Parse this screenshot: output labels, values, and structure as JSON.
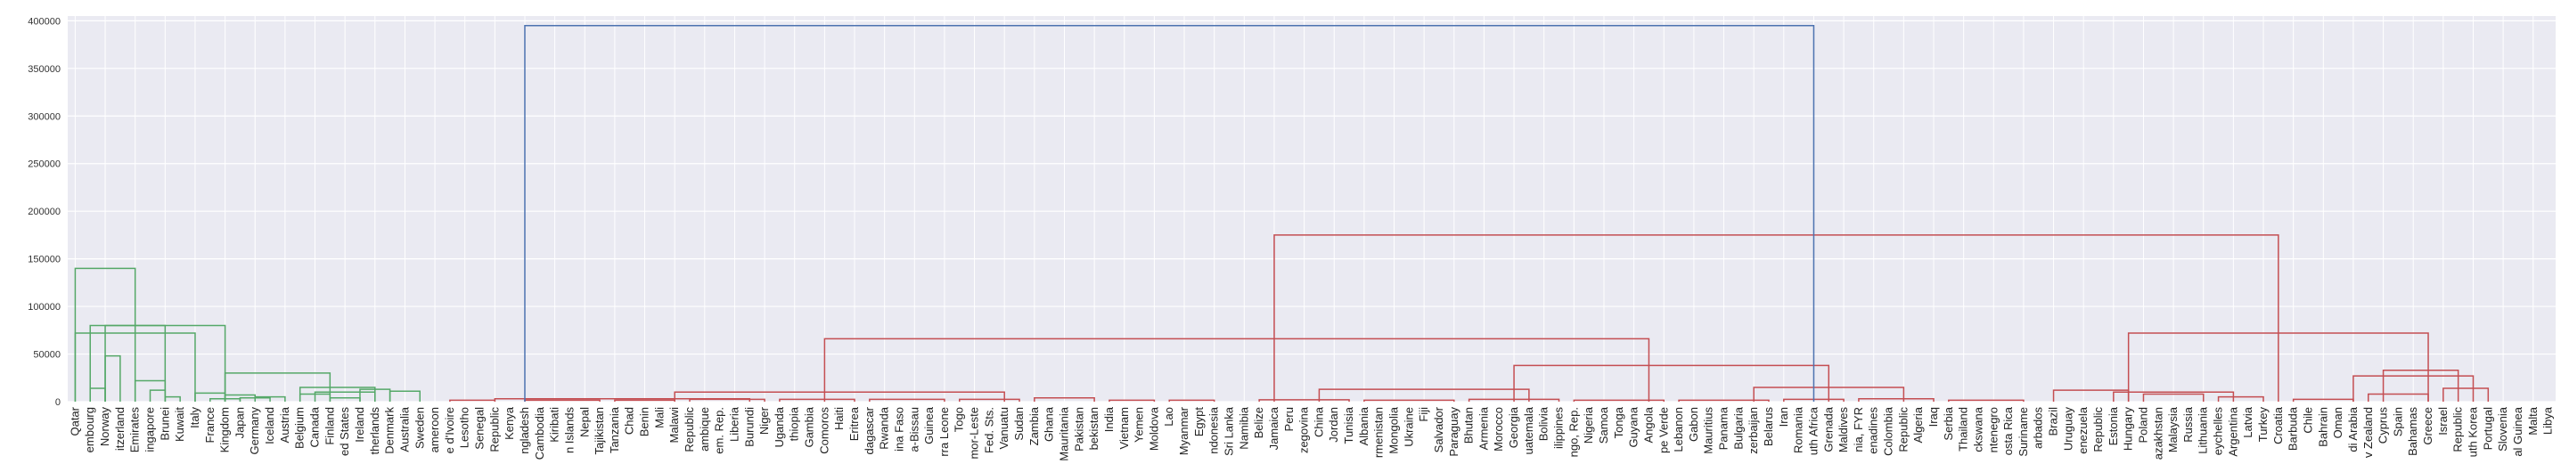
{
  "chart_data": {
    "type": "dendrogram",
    "ylim": [
      0,
      405000
    ],
    "yticks": [
      0,
      50000,
      100000,
      150000,
      200000,
      250000,
      300000,
      350000,
      400000
    ],
    "ytick_labels": [
      "0",
      "50000",
      "100000",
      "150000",
      "200000",
      "250000",
      "300000",
      "350000",
      "400000"
    ],
    "grid": true,
    "colors": {
      "background": "#eaeaf2",
      "grid": "#ffffff",
      "cluster_green": "#55a868",
      "cluster_red": "#c44e52",
      "root_blue": "#4c72b0"
    },
    "leaves": [
      "Qatar",
      "embourg",
      "Norway",
      "itzerland",
      "Emirates",
      "ingapore",
      "Brunei",
      "Kuwait",
      "Italy",
      "France",
      "Kingdom",
      "Japan",
      "Germany",
      "Iceland",
      "Austria",
      "Belgium",
      "Canada",
      "Finland",
      "ed States",
      "Ireland",
      "therlands",
      "Denmark",
      "Australia",
      "Sweden",
      "ameroon",
      "e d'Ivoire",
      "Lesotho",
      "Senegal",
      "Republic",
      "Kenya",
      "ngladesh",
      "Cambodia",
      "Kiribati",
      "n Islands",
      "Nepal",
      "Tajikistan",
      "Tanzania",
      "Chad",
      "Benin",
      "Mali",
      "Malawi",
      "Republic",
      "ambique",
      "em. Rep.",
      "Liberia",
      "Burundi",
      "Niger",
      "Uganda",
      "thiopia",
      "Gambia",
      "Comoros",
      "Haiti",
      "Eritrea",
      "dagascar",
      "Rwanda",
      "ina Faso",
      "a-Bissau",
      "Guinea",
      "rra Leone",
      "Togo",
      "mor-Leste",
      "Fed. Sts.",
      "Vanuatu",
      "Sudan",
      "Zambia",
      "Ghana",
      "Mauritania",
      "Pakistan",
      "bekistan",
      "India",
      "Vietnam",
      "Yemen",
      "Moldova",
      "Lao",
      "Myanmar",
      "Egypt",
      "ndonesia",
      "Sri Lanka",
      "Namibia",
      "Belize",
      "Jamaica",
      "Peru",
      "zegovina",
      "China",
      "Jordan",
      "Tunisia",
      "Albania",
      "rmenistan",
      "Mongolia",
      "Ukraine",
      "Fiji",
      "Salvador",
      "Paraguay",
      "Bhutan",
      "Armenia",
      "Morocco",
      "Georgia",
      "uatemala",
      "Bolivia",
      "ilippines",
      "ngo, Rep.",
      "Nigeria",
      "Samoa",
      "Tonga",
      "Guyana",
      "Angola",
      "pe Verde",
      "Lebanon",
      "Gabon",
      "Mauritius",
      "Panama",
      "Bulgaria",
      "zerbaijan",
      "Belarus",
      "Iran",
      "Romania",
      "uth Africa",
      "Grenada",
      "Maldives",
      "nia, FYR",
      "enadines",
      "Colombia",
      "Republic",
      "Algeria",
      "Iraq",
      "Serbia",
      "Thailand",
      "ckswana",
      "ntenegro",
      "osta Rica",
      "Suriname",
      "arbados",
      "Brazil",
      "Uruguay",
      "enezuela",
      "Republic",
      "Estonia",
      "Hungary",
      "Poland",
      "azakhstan",
      "Malaysia",
      "Russia",
      "Lithuania",
      "eychelles",
      "Argentina",
      "Latvia",
      "Turkey",
      "Croatia",
      "Barbuda",
      "Chile",
      "Bahrain",
      "Oman",
      "di Arabia",
      "v Zealand",
      "Cyprus",
      "Spain",
      "Bahamas",
      "Greece",
      "Israel",
      "Republic",
      "uth Korea",
      "Portugal",
      "Slovenia",
      "al Guinea",
      "Malta",
      "Libya"
    ],
    "links": [
      [
        0,
        8,
        72000,
        "g"
      ],
      [
        1,
        2,
        14000,
        "g"
      ],
      [
        3,
        2,
        48000,
        "g"
      ],
      [
        5,
        6,
        12000,
        "g"
      ],
      [
        4,
        6,
        22000,
        "g"
      ],
      [
        6,
        7,
        5000,
        "g"
      ],
      [
        2,
        6,
        80000,
        "g"
      ],
      [
        8,
        10,
        9000,
        "g"
      ],
      [
        9,
        11,
        3000,
        "g"
      ],
      [
        11,
        13,
        4000,
        "g"
      ],
      [
        12,
        14,
        5000,
        "g"
      ],
      [
        10,
        12,
        7000,
        "g"
      ],
      [
        15,
        17,
        8000,
        "g"
      ],
      [
        17,
        19,
        4000,
        "g"
      ],
      [
        19,
        21,
        13000,
        "g"
      ],
      [
        16,
        20,
        10000,
        "g"
      ],
      [
        21,
        23,
        11000,
        "g"
      ],
      [
        15,
        20,
        15000,
        "g"
      ],
      [
        10,
        17,
        30000,
        "g"
      ],
      [
        1,
        10,
        80000,
        "g"
      ],
      [
        0,
        4,
        140000,
        "g"
      ],
      [
        25,
        28,
        1500,
        "r"
      ],
      [
        30,
        35,
        1500,
        "r"
      ],
      [
        36,
        40,
        1500,
        "r"
      ],
      [
        41,
        46,
        2500,
        "r"
      ],
      [
        47,
        52,
        2500,
        "r"
      ],
      [
        28,
        45,
        3000,
        "r"
      ],
      [
        53,
        58,
        2500,
        "r"
      ],
      [
        59,
        63,
        2500,
        "r"
      ],
      [
        64,
        68,
        4000,
        "r"
      ],
      [
        69,
        72,
        1500,
        "r"
      ],
      [
        73,
        76,
        1500,
        "r"
      ],
      [
        40,
        62,
        10000,
        "r"
      ],
      [
        79,
        85,
        2000,
        "r"
      ],
      [
        86,
        92,
        1500,
        "r"
      ],
      [
        93,
        99,
        2500,
        "r"
      ],
      [
        100,
        106,
        1500,
        "r"
      ],
      [
        83,
        97,
        13000,
        "r"
      ],
      [
        107,
        113,
        1500,
        "r"
      ],
      [
        114,
        118,
        2500,
        "r"
      ],
      [
        119,
        124,
        3000,
        "r"
      ],
      [
        125,
        130,
        1500,
        "r"
      ],
      [
        112,
        122,
        15000,
        "r"
      ],
      [
        96,
        117,
        38000,
        "r"
      ],
      [
        50,
        105,
        66000,
        "r"
      ],
      [
        132,
        137,
        12000,
        "r"
      ],
      [
        138,
        142,
        8000,
        "r"
      ],
      [
        143,
        146,
        5000,
        "r"
      ],
      [
        136,
        144,
        10000,
        "r"
      ],
      [
        148,
        152,
        2500,
        "r"
      ],
      [
        153,
        157,
        8000,
        "r"
      ],
      [
        158,
        161,
        14000,
        "r"
      ],
      [
        152,
        160,
        27000,
        "r"
      ],
      [
        154,
        159,
        33000,
        "r"
      ],
      [
        137,
        157,
        72000,
        "r"
      ],
      [
        80,
        147,
        175000,
        "r"
      ],
      [
        30,
        116,
        395000,
        "b"
      ]
    ]
  }
}
